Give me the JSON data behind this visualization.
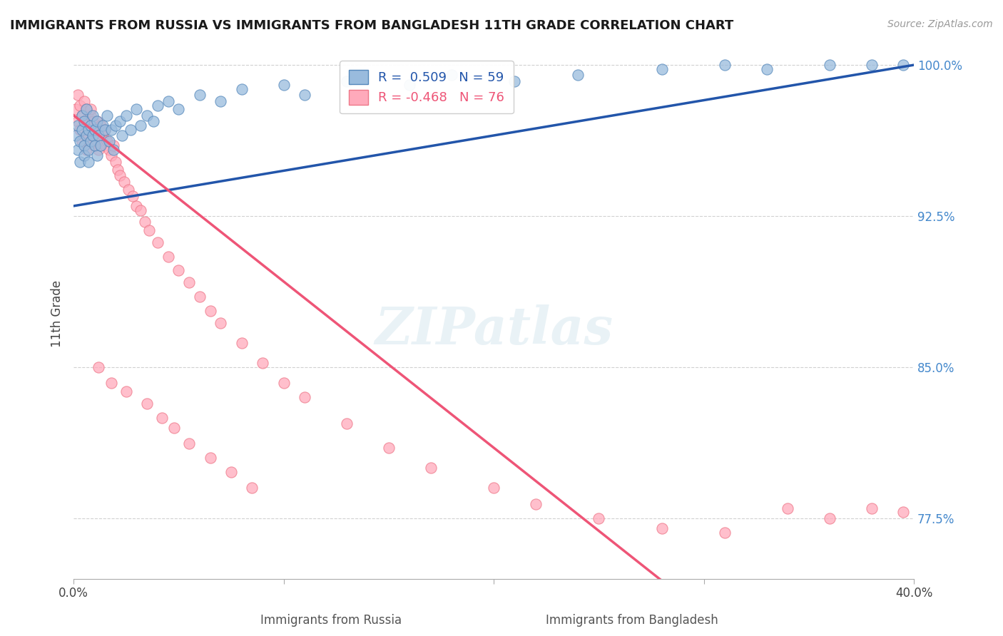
{
  "title": "IMMIGRANTS FROM RUSSIA VS IMMIGRANTS FROM BANGLADESH 11TH GRADE CORRELATION CHART",
  "source": "Source: ZipAtlas.com",
  "xlabel_russia": "Immigrants from Russia",
  "xlabel_bangladesh": "Immigrants from Bangladesh",
  "ylabel": "11th Grade",
  "xlim": [
    0.0,
    0.4
  ],
  "ylim": [
    0.745,
    1.008
  ],
  "xticks": [
    0.0,
    0.1,
    0.2,
    0.3,
    0.4
  ],
  "xtick_labels": [
    "0.0%",
    "",
    "",
    "",
    "40.0%"
  ],
  "yticks": [
    0.775,
    0.85,
    0.925,
    1.0
  ],
  "ytick_labels": [
    "77.5%",
    "85.0%",
    "92.5%",
    "100.0%"
  ],
  "R_russia": 0.509,
  "N_russia": 59,
  "R_bangladesh": -0.468,
  "N_bangladesh": 76,
  "russia_color": "#99BBDD",
  "russia_edge_color": "#5588BB",
  "bangladesh_color": "#FFAABB",
  "bangladesh_edge_color": "#EE7788",
  "trend_russia_color": "#2255AA",
  "trend_bangladesh_color": "#EE5577",
  "watermark": "ZIPatlas",
  "russia_x": [
    0.001,
    0.002,
    0.002,
    0.003,
    0.003,
    0.004,
    0.004,
    0.005,
    0.005,
    0.005,
    0.006,
    0.006,
    0.007,
    0.007,
    0.007,
    0.008,
    0.008,
    0.009,
    0.009,
    0.01,
    0.01,
    0.011,
    0.011,
    0.012,
    0.013,
    0.014,
    0.015,
    0.016,
    0.017,
    0.018,
    0.019,
    0.02,
    0.022,
    0.023,
    0.025,
    0.027,
    0.03,
    0.032,
    0.035,
    0.038,
    0.04,
    0.045,
    0.05,
    0.06,
    0.07,
    0.08,
    0.1,
    0.11,
    0.13,
    0.16,
    0.18,
    0.21,
    0.24,
    0.28,
    0.31,
    0.33,
    0.36,
    0.38,
    0.395
  ],
  "russia_y": [
    0.965,
    0.958,
    0.97,
    0.952,
    0.962,
    0.968,
    0.975,
    0.96,
    0.972,
    0.955,
    0.965,
    0.978,
    0.958,
    0.968,
    0.952,
    0.97,
    0.962,
    0.965,
    0.975,
    0.96,
    0.968,
    0.955,
    0.972,
    0.965,
    0.96,
    0.97,
    0.968,
    0.975,
    0.962,
    0.968,
    0.958,
    0.97,
    0.972,
    0.965,
    0.975,
    0.968,
    0.978,
    0.97,
    0.975,
    0.972,
    0.98,
    0.982,
    0.978,
    0.985,
    0.982,
    0.988,
    0.99,
    0.985,
    0.992,
    0.99,
    0.995,
    0.992,
    0.995,
    0.998,
    1.0,
    0.998,
    1.0,
    1.0,
    1.0
  ],
  "bangladesh_x": [
    0.001,
    0.002,
    0.002,
    0.003,
    0.003,
    0.004,
    0.004,
    0.005,
    0.005,
    0.006,
    0.006,
    0.006,
    0.007,
    0.007,
    0.008,
    0.008,
    0.008,
    0.009,
    0.009,
    0.01,
    0.01,
    0.011,
    0.011,
    0.012,
    0.012,
    0.013,
    0.014,
    0.015,
    0.015,
    0.016,
    0.017,
    0.018,
    0.019,
    0.02,
    0.021,
    0.022,
    0.024,
    0.026,
    0.028,
    0.03,
    0.032,
    0.034,
    0.036,
    0.04,
    0.045,
    0.05,
    0.055,
    0.06,
    0.065,
    0.07,
    0.08,
    0.09,
    0.1,
    0.11,
    0.13,
    0.15,
    0.17,
    0.2,
    0.22,
    0.25,
    0.28,
    0.31,
    0.34,
    0.36,
    0.38,
    0.395,
    0.012,
    0.018,
    0.025,
    0.035,
    0.042,
    0.048,
    0.055,
    0.065,
    0.075,
    0.085
  ],
  "bangladesh_y": [
    0.978,
    0.972,
    0.985,
    0.968,
    0.98,
    0.975,
    0.962,
    0.972,
    0.982,
    0.965,
    0.978,
    0.958,
    0.972,
    0.965,
    0.975,
    0.962,
    0.978,
    0.965,
    0.972,
    0.96,
    0.968,
    0.962,
    0.972,
    0.965,
    0.958,
    0.97,
    0.965,
    0.96,
    0.968,
    0.962,
    0.958,
    0.955,
    0.96,
    0.952,
    0.948,
    0.945,
    0.942,
    0.938,
    0.935,
    0.93,
    0.928,
    0.922,
    0.918,
    0.912,
    0.905,
    0.898,
    0.892,
    0.885,
    0.878,
    0.872,
    0.862,
    0.852,
    0.842,
    0.835,
    0.822,
    0.81,
    0.8,
    0.79,
    0.782,
    0.775,
    0.77,
    0.768,
    0.78,
    0.775,
    0.78,
    0.778,
    0.85,
    0.842,
    0.838,
    0.832,
    0.825,
    0.82,
    0.812,
    0.805,
    0.798,
    0.79
  ]
}
